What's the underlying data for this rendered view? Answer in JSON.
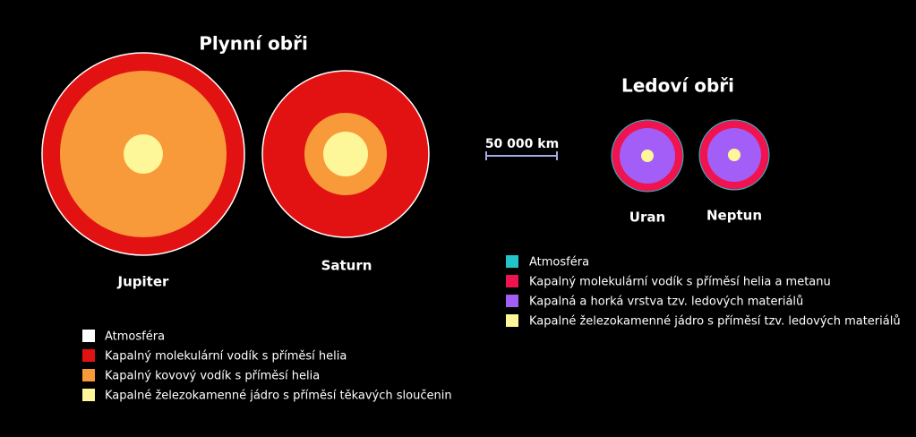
{
  "gas_giants": {
    "title": "Plynní obři",
    "planets": [
      "Jupiter",
      "Saturn"
    ],
    "legend": [
      "Atmosféra",
      "Kapalný molekulární vodík s příměsí helia",
      "Kapalný kovový vodík s příměsí helia",
      "Kapalné železokamenné jádro s příměsí těkavých sloučenin"
    ]
  },
  "ice_giants": {
    "title": "Ledoví obři",
    "planets": [
      "Uran",
      "Neptun"
    ],
    "legend": [
      "Atmosféra",
      "Kapalný molekulární vodík s příměsí helia a metanu",
      "Kapalná a horká vrstva tzv. ledových materiálů",
      "Kapalné železokamenné jádro s příměsí tzv. ledových materiálů"
    ]
  },
  "scale": {
    "label": "50 000 km"
  }
}
